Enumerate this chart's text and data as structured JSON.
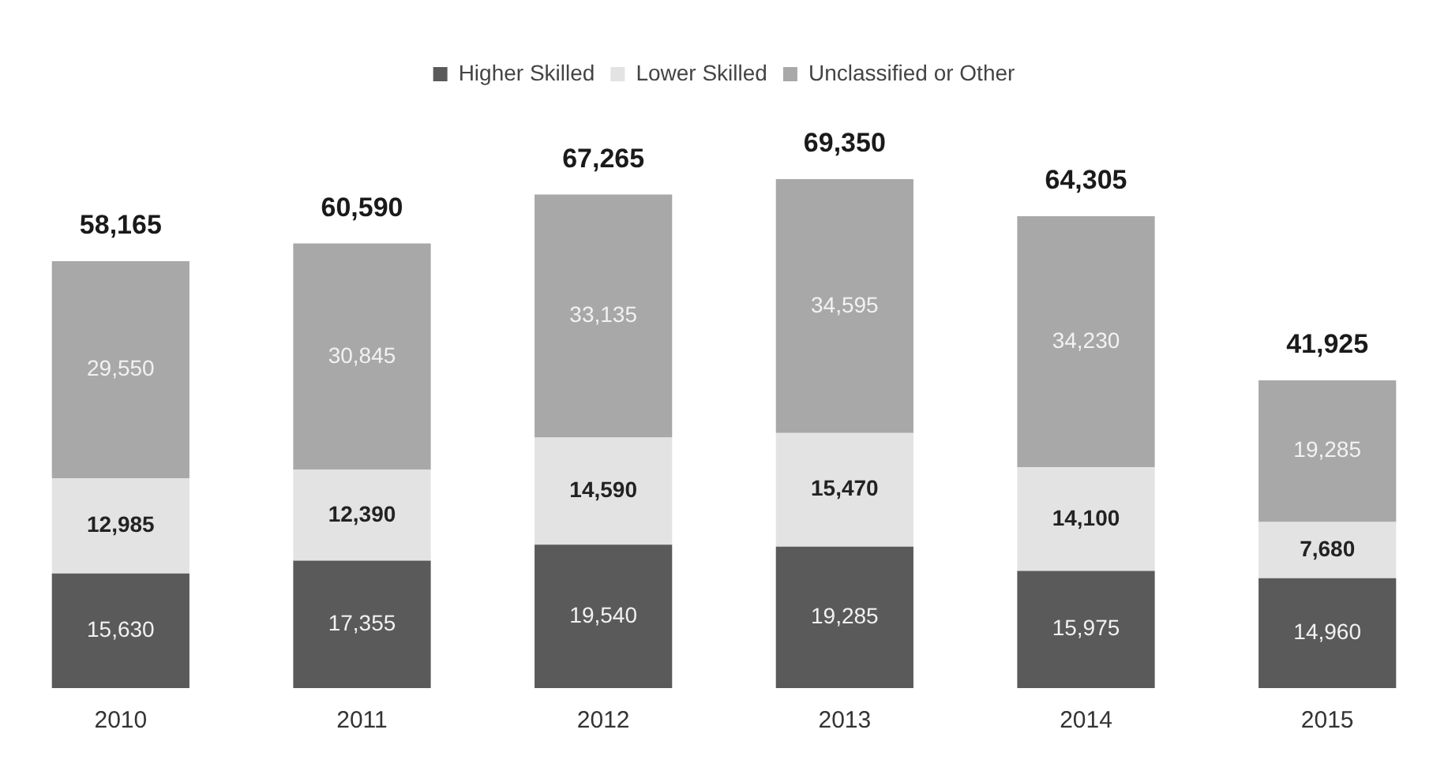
{
  "chart_data": {
    "type": "bar",
    "stacked": true,
    "categories": [
      "2010",
      "2011",
      "2012",
      "2013",
      "2014",
      "2015"
    ],
    "series": [
      {
        "name": "Higher Skilled",
        "color": "#5a5a5a",
        "values": [
          15630,
          17355,
          19540,
          19285,
          15975,
          14960
        ],
        "value_labels": [
          "15,630",
          "17,355",
          "19,540",
          "19,285",
          "15,975",
          "14,960"
        ]
      },
      {
        "name": "Lower Skilled",
        "color": "#e3e3e3",
        "values": [
          12985,
          12390,
          14590,
          15470,
          14100,
          7680
        ],
        "value_labels": [
          "12,985",
          "12,390",
          "14,590",
          "15,470",
          "14,100",
          "7,680"
        ]
      },
      {
        "name": "Unclassified or Other",
        "color": "#a8a8a8",
        "values": [
          29550,
          30845,
          33135,
          34595,
          34230,
          19285
        ],
        "value_labels": [
          "29,550",
          "30,845",
          "33,135",
          "34,595",
          "34,230",
          "19,285"
        ]
      }
    ],
    "totals": [
      "58,165",
      "60,590",
      "67,265",
      "69,350",
      "64,305",
      "41,925"
    ],
    "legend": "top",
    "grid": false
  }
}
